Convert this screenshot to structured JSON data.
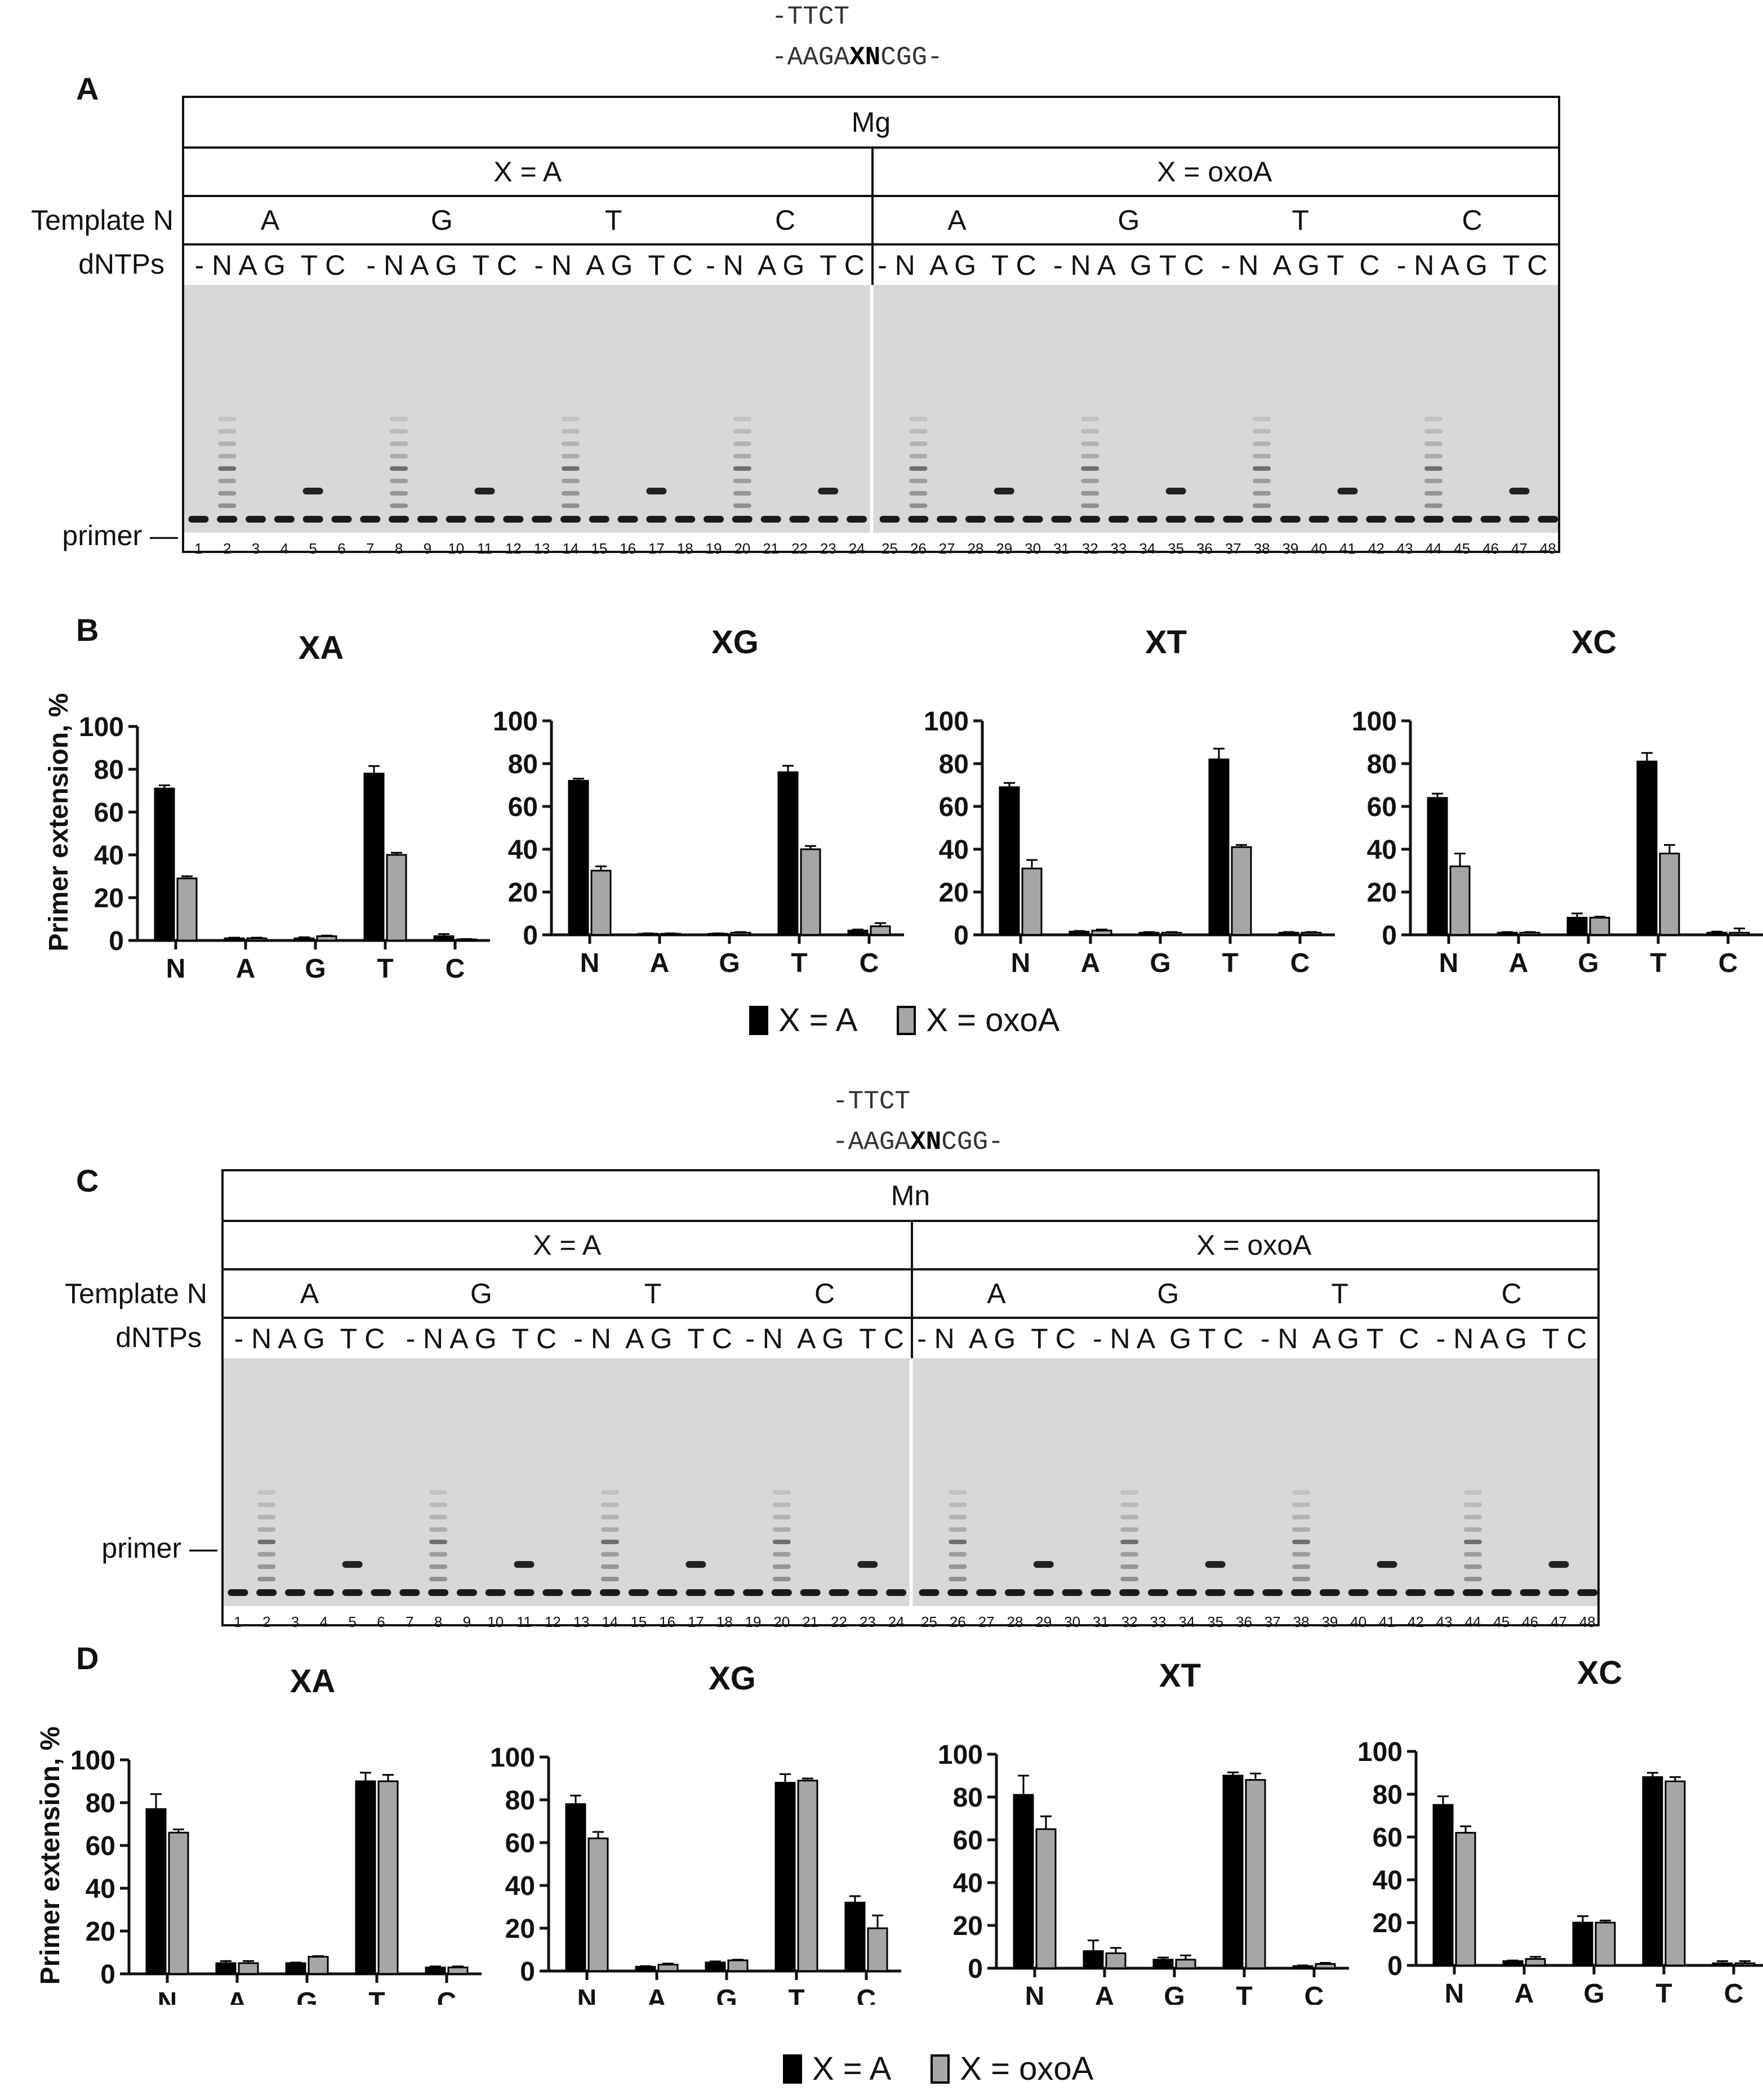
{
  "sequences": {
    "top_line": "-TTCT",
    "bottom_prefix": "-AAGA",
    "bottom_bold": "XN",
    "bottom_suffix": "CGG-"
  },
  "panels": {
    "A": {
      "letter": "A",
      "metal": "Mg"
    },
    "B": {
      "letter": "B"
    },
    "C": {
      "letter": "C",
      "metal": "Mn"
    },
    "D": {
      "letter": "D"
    }
  },
  "gel_labels": {
    "x_a": "X = A",
    "x_oxoa": "X = oxoA",
    "template_n": "Template N",
    "dntps": "dNTPs",
    "primer": "primer —",
    "template_bases": [
      "A",
      "G",
      "T",
      "C"
    ],
    "dntp_groups": [
      "- N A G  T C",
      "- N A G  T C",
      "- N  A G  T C",
      "- N  A G  T C",
      "- N  A G  T C",
      "- N A  G T C",
      "- N  A G T  C",
      "- N A G  T C"
    ],
    "lane_numbers": [
      "1",
      "2",
      "3",
      "4",
      "5",
      "6",
      "7",
      "8",
      "9",
      "10",
      "11",
      "12",
      "13",
      "14",
      "15",
      "16",
      "17",
      "18",
      "19",
      "20",
      "21",
      "22",
      "23",
      "24",
      "25",
      "26",
      "27",
      "28",
      "29",
      "30",
      "31",
      "32",
      "33",
      "34",
      "35",
      "36",
      "37",
      "38",
      "39",
      "40",
      "41",
      "42",
      "43",
      "44",
      "45",
      "46",
      "47",
      "48"
    ]
  },
  "legend": {
    "x_a": "X = A",
    "x_oxoa": "X = oxoA"
  },
  "colors": {
    "x_a": "#000000",
    "x_oxoa": "#a6a6a6",
    "gel_bg": "#d8d8d8",
    "band": "#1a1a1a"
  },
  "chart_data": [
    {
      "panel": "B",
      "type": "bar",
      "title": "XA",
      "ylabel": "Primer extension, %",
      "ylim": [
        0,
        100
      ],
      "yticks": [
        0,
        20,
        40,
        60,
        80,
        100
      ],
      "categories": [
        "N",
        "A",
        "G",
        "T",
        "C"
      ],
      "series": [
        {
          "name": "X = A",
          "values": [
            71,
            1,
            1,
            78,
            2
          ],
          "errors": [
            1.5,
            0.3,
            0.5,
            3.5,
            1
          ]
        },
        {
          "name": "X = oxoA",
          "values": [
            29,
            1,
            2,
            40,
            0.5
          ],
          "errors": [
            1,
            0.3,
            0.3,
            1,
            0.2
          ]
        }
      ]
    },
    {
      "panel": "B",
      "type": "bar",
      "title": "XG",
      "ylabel": "",
      "ylim": [
        0,
        100
      ],
      "yticks": [
        0,
        20,
        40,
        60,
        80,
        100
      ],
      "categories": [
        "N",
        "A",
        "G",
        "T",
        "C"
      ],
      "series": [
        {
          "name": "X = A",
          "values": [
            72,
            0.5,
            0.5,
            76,
            2
          ],
          "errors": [
            1,
            0.2,
            0.2,
            3,
            0.5
          ]
        },
        {
          "name": "X = oxoA",
          "values": [
            30,
            0.5,
            1,
            40,
            4
          ],
          "errors": [
            2,
            0.2,
            0.3,
            1.5,
            1.5
          ]
        }
      ]
    },
    {
      "panel": "B",
      "type": "bar",
      "title": "XT",
      "ylabel": "",
      "ylim": [
        0,
        100
      ],
      "yticks": [
        0,
        20,
        40,
        60,
        80,
        100
      ],
      "categories": [
        "N",
        "A",
        "G",
        "T",
        "C"
      ],
      "series": [
        {
          "name": "X = A",
          "values": [
            69,
            1.5,
            1,
            82,
            1
          ],
          "errors": [
            2,
            0.3,
            0.3,
            5,
            0.3
          ]
        },
        {
          "name": "X = oxoA",
          "values": [
            31,
            2,
            1,
            41,
            1
          ],
          "errors": [
            4,
            0.5,
            0.3,
            1,
            0.3
          ]
        }
      ]
    },
    {
      "panel": "B",
      "type": "bar",
      "title": "XC",
      "ylabel": "",
      "ylim": [
        0,
        100
      ],
      "yticks": [
        0,
        20,
        40,
        60,
        80,
        100
      ],
      "categories": [
        "N",
        "A",
        "G",
        "T",
        "C"
      ],
      "series": [
        {
          "name": "X = A",
          "values": [
            64,
            1,
            8,
            81,
            1
          ],
          "errors": [
            2,
            0.3,
            2,
            4,
            0.5
          ]
        },
        {
          "name": "X = oxoA",
          "values": [
            32,
            1,
            8,
            38,
            1
          ],
          "errors": [
            6,
            0.3,
            0.5,
            4,
            2
          ]
        }
      ]
    },
    {
      "panel": "D",
      "type": "bar",
      "title": "XA",
      "ylabel": "Primer extension, %",
      "ylim": [
        0,
        100
      ],
      "yticks": [
        0,
        20,
        40,
        60,
        80,
        100
      ],
      "categories": [
        "N",
        "A",
        "G",
        "T",
        "C"
      ],
      "series": [
        {
          "name": "X = A",
          "values": [
            77,
            5,
            5,
            90,
            3
          ],
          "errors": [
            7,
            1,
            0.3,
            4,
            0.5
          ]
        },
        {
          "name": "X = oxoA",
          "values": [
            66,
            5,
            8,
            90,
            3
          ],
          "errors": [
            1.5,
            1,
            0.3,
            3,
            0.5
          ]
        }
      ]
    },
    {
      "panel": "D",
      "type": "bar",
      "title": "XG",
      "ylabel": "",
      "ylim": [
        0,
        100
      ],
      "yticks": [
        0,
        20,
        40,
        60,
        80,
        100
      ],
      "categories": [
        "N",
        "A",
        "G",
        "T",
        "C"
      ],
      "series": [
        {
          "name": "X = A",
          "values": [
            78,
            2,
            4,
            88,
            32
          ],
          "errors": [
            4,
            0.3,
            0.5,
            4,
            3
          ]
        },
        {
          "name": "X = oxoA",
          "values": [
            62,
            3,
            5,
            89,
            20
          ],
          "errors": [
            3,
            0.5,
            0.3,
            1,
            6
          ]
        }
      ]
    },
    {
      "panel": "D",
      "type": "bar",
      "title": "XT",
      "ylabel": "",
      "ylim": [
        0,
        100
      ],
      "yticks": [
        0,
        20,
        40,
        60,
        80,
        100
      ],
      "categories": [
        "N",
        "A",
        "G",
        "T",
        "C"
      ],
      "series": [
        {
          "name": "X = A",
          "values": [
            81,
            8,
            4,
            90,
            1
          ],
          "errors": [
            9,
            5,
            1,
            1.5,
            0.3
          ]
        },
        {
          "name": "X = oxoA",
          "values": [
            65,
            7,
            4,
            88,
            2
          ],
          "errors": [
            6,
            2.5,
            2,
            3,
            0.5
          ]
        }
      ]
    },
    {
      "panel": "D",
      "type": "bar",
      "title": "XC",
      "ylabel": "",
      "ylim": [
        0,
        100
      ],
      "yticks": [
        0,
        20,
        40,
        60,
        80,
        100
      ],
      "categories": [
        "N",
        "A",
        "G",
        "T",
        "C"
      ],
      "series": [
        {
          "name": "X = A",
          "values": [
            75,
            2,
            20,
            88,
            1
          ],
          "errors": [
            4,
            0.3,
            3,
            2,
            1
          ]
        },
        {
          "name": "X = oxoA",
          "values": [
            62,
            3,
            20,
            86,
            1
          ],
          "errors": [
            3,
            1,
            1,
            2,
            1
          ]
        }
      ]
    }
  ]
}
